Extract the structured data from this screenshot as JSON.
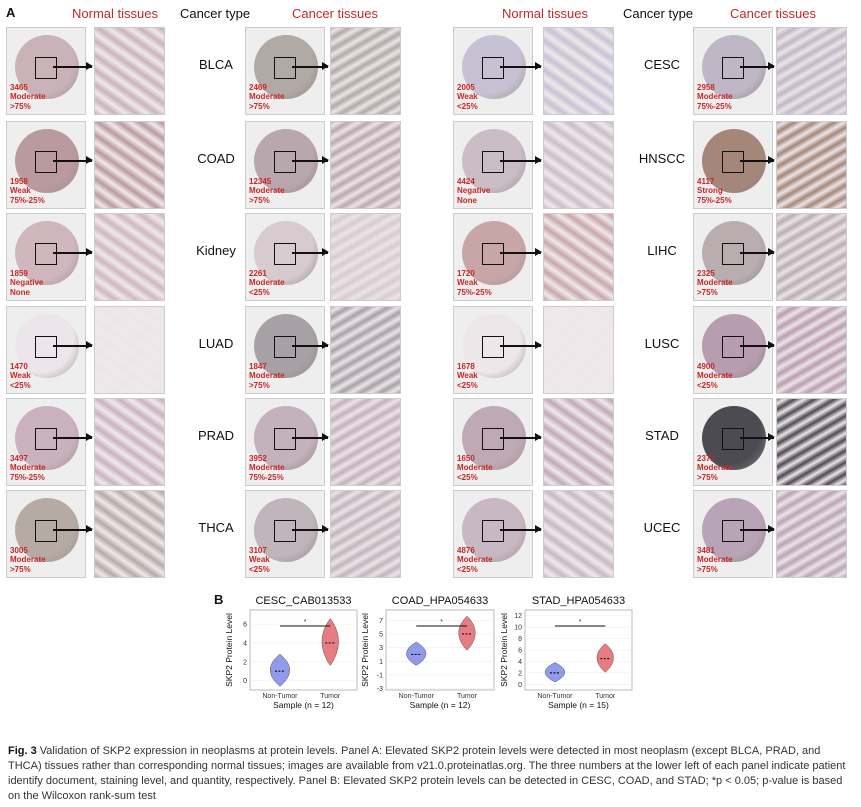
{
  "panel_a": {
    "letter": "A",
    "header_normal": "Normal tissues",
    "header_cancer_type": "Cancer type",
    "header_cancer": "Cancer tissues",
    "left_rows": [
      {
        "type": "BLCA",
        "normal": "3465\nModerate\n>75%",
        "cancer": "2469\nModerate\n>75%"
      },
      {
        "type": "COAD",
        "normal": "1958\nWeak\n75%-25%",
        "cancer": "12345\nModerate\n>75%"
      },
      {
        "type": "Kidney",
        "normal": "1859\nNegative\nNone",
        "cancer": "2261\nModerate\n<25%"
      },
      {
        "type": "LUAD",
        "normal": "1470\nWeak\n<25%",
        "cancer": "1847\nModerate\n>75%"
      },
      {
        "type": "PRAD",
        "normal": "3497\nModerate\n75%-25%",
        "cancer": "3952\nModerate\n75%-25%"
      },
      {
        "type": "THCA",
        "normal": "3005\nModerate\n>75%",
        "cancer": "3107\nWeak\n<25%"
      }
    ],
    "right_rows": [
      {
        "type": "CESC",
        "normal": "2005\nWeak\n<25%",
        "cancer": "2958\nModerate\n75%-25%"
      },
      {
        "type": "HNSCC",
        "normal": "4424\nNegative\nNone",
        "cancer": "4117\nStrong\n75%-25%"
      },
      {
        "type": "LIHC",
        "normal": "1720\nWeak\n75%-25%",
        "cancer": "2325\nModerate\n>75%"
      },
      {
        "type": "LUSC",
        "normal": "1678\nWeak\n<25%",
        "cancer": "4900\nModerate\n<25%"
      },
      {
        "type": "STAD",
        "normal": "1650\nModerate\n<25%",
        "cancer": "2372\nModerate\n>75%"
      },
      {
        "type": "UCEC",
        "normal": "4876\nModerate\n<25%",
        "cancer": "3481\nModerate\n>75%"
      }
    ]
  },
  "panel_b": {
    "letter": "B",
    "ylabel": "SKP2 Protein Level",
    "xlabel_prefix": "Sample",
    "sig": "*"
  },
  "chart_data": [
    {
      "type": "violin",
      "title": "CESC_CAB013533",
      "categories": [
        "Non-Tumor",
        "Tumor"
      ],
      "xlabel": "Sample (n = 12)",
      "ylabel": "SKP2 Protein Level",
      "ylim": [
        -1,
        7.5
      ],
      "yticks": [
        0,
        2,
        4,
        6
      ],
      "medians": [
        1,
        4
      ],
      "significance": "*",
      "colors": {
        "Non-Tumor": "#6b79e6",
        "Tumor": "#e0505a"
      }
    },
    {
      "type": "violin",
      "title": "COAD_HPA054633",
      "categories": [
        "Non-Tumor",
        "Tumor"
      ],
      "xlabel": "Sample (n = 12)",
      "ylabel": "SKP2 Protein Level",
      "ylim": [
        -3.2,
        8.5
      ],
      "yticks": [
        -3,
        -1,
        1,
        3,
        5,
        7
      ],
      "medians": [
        2,
        5
      ],
      "significance": "*",
      "colors": {
        "Non-Tumor": "#6b79e6",
        "Tumor": "#e0505a"
      }
    },
    {
      "type": "violin",
      "title": "STAD_HPA054633",
      "categories": [
        "Non-Tumor",
        "Tumor"
      ],
      "xlabel": "Sample (n = 15)",
      "ylabel": "SKP2 Protein Level",
      "ylim": [
        -1,
        13
      ],
      "yticks": [
        0,
        2,
        4,
        6,
        8,
        10,
        12
      ],
      "medians": [
        2,
        4.5
      ],
      "significance": "*",
      "colors": {
        "Non-Tumor": "#6b79e6",
        "Tumor": "#e0505a"
      }
    }
  ],
  "caption": {
    "bold": "Fig. 3",
    "text": "  Validation of SKP2 expression in neoplasms at protein levels. Panel A: Elevated SKP2 protein levels were detected in most neoplasm (except BLCA, PRAD, and THCA) tissues rather than corresponding normal tissues; images are available from v21.0.proteinatlas.org. The three numbers at the lower left of each panel indicate patient identify document, staining level, and quantity, respectively. Panel B: Elevated SKP2 protein levels can be detected in CESC, COAD, and STAD; *p < 0.05; p-value is based on the Wilcoxon rank-sum test"
  }
}
